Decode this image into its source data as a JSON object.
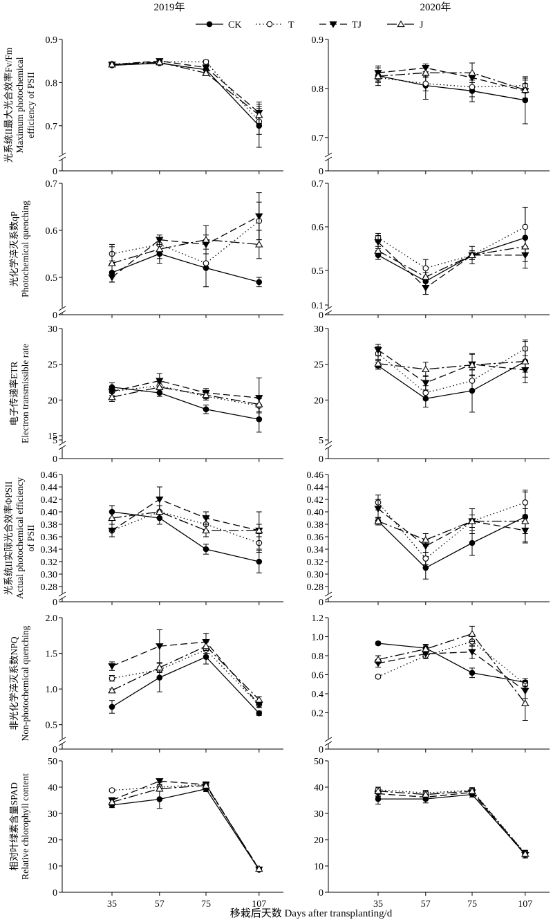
{
  "header": {
    "col_left": "2019年",
    "col_right": "2020年"
  },
  "legend": [
    {
      "key": "CK",
      "label": "CK",
      "dash": "",
      "marker": "filled-circle"
    },
    {
      "key": "T",
      "label": "T",
      "dash": "1.5 3.5",
      "marker": "open-circle"
    },
    {
      "key": "TJ",
      "label": "TJ",
      "dash": "10 5",
      "marker": "filled-triangle-down"
    },
    {
      "key": "J",
      "label": "J",
      "dash": "14 4 3 4",
      "marker": "open-triangle-up"
    }
  ],
  "x_axis": {
    "label": "移栽后天数 Days after transplanting/d",
    "categories": [
      "35",
      "57",
      "75",
      "107"
    ]
  },
  "chart_data": [
    {
      "type": "line",
      "year": "2019年",
      "row": 0,
      "col": 0,
      "ylabel_lines": [
        "光系统II最大光合效率Fv/Fm",
        "Maximum photochemical",
        "efficiency of PSII"
      ],
      "ylim": [
        0.65,
        0.9
      ],
      "yticks": [
        0.7,
        0.8,
        0.9
      ],
      "y_tick_labels": [
        "0.7",
        "0.8",
        "0.9"
      ],
      "zero_label": "0",
      "categories": [
        "35",
        "57",
        "75",
        "107"
      ],
      "series": [
        {
          "name": "CK",
          "values": [
            0.84,
            0.845,
            0.83,
            0.7
          ],
          "errors": [
            0.003,
            0.004,
            0.006,
            0.05
          ]
        },
        {
          "name": "T",
          "values": [
            0.843,
            0.848,
            0.848,
            0.71
          ],
          "errors": [
            0.003,
            0.004,
            0.004,
            0.03
          ]
        },
        {
          "name": "TJ",
          "values": [
            0.842,
            0.85,
            0.835,
            0.73
          ],
          "errors": [
            0.003,
            0.004,
            0.006,
            0.025
          ]
        },
        {
          "name": "J",
          "values": [
            0.842,
            0.847,
            0.822,
            0.725
          ],
          "errors": [
            0.003,
            0.004,
            0.006,
            0.02
          ]
        }
      ]
    },
    {
      "type": "line",
      "year": "2020年",
      "row": 0,
      "col": 1,
      "ylabel_lines": [],
      "ylim": [
        0.68,
        0.9
      ],
      "yticks": [
        0.7,
        0.8,
        0.9
      ],
      "y_tick_labels": [
        "0.7",
        "0.8",
        "0.9"
      ],
      "zero_label": "0",
      "categories": [
        "35",
        "57",
        "75",
        "107"
      ],
      "series": [
        {
          "name": "CK",
          "values": [
            0.826,
            0.806,
            0.795,
            0.776
          ],
          "errors": [
            0.02,
            0.028,
            0.022,
            0.048
          ]
        },
        {
          "name": "T",
          "values": [
            0.822,
            0.81,
            0.803,
            0.806
          ],
          "errors": [
            0.01,
            0.015,
            0.02,
            0.015
          ]
        },
        {
          "name": "TJ",
          "values": [
            0.832,
            0.842,
            0.822,
            0.795
          ],
          "errors": [
            0.01,
            0.008,
            0.01,
            0.015
          ]
        },
        {
          "name": "J",
          "values": [
            0.825,
            0.832,
            0.832,
            0.797
          ],
          "errors": [
            0.01,
            0.01,
            0.02,
            0.02
          ]
        }
      ]
    },
    {
      "type": "line",
      "year": "2019年",
      "row": 1,
      "col": 0,
      "ylabel_lines": [
        "光化学淬灭系数qP",
        "Photochemical quenching"
      ],
      "ylim": [
        0.45,
        0.7
      ],
      "yticks": [
        0.5,
        0.6,
        0.7
      ],
      "y_tick_labels": [
        "0.5",
        "0.6",
        "0.7"
      ],
      "zero_label": "0",
      "categories": [
        "35",
        "57",
        "75",
        "107"
      ],
      "series": [
        {
          "name": "CK",
          "values": [
            0.51,
            0.55,
            0.52,
            0.49
          ],
          "errors": [
            0.02,
            0.02,
            0.04,
            0.01
          ]
        },
        {
          "name": "T",
          "values": [
            0.55,
            0.57,
            0.53,
            0.62
          ],
          "errors": [
            0.015,
            0.015,
            0.05,
            0.04
          ]
        },
        {
          "name": "TJ",
          "values": [
            0.5,
            0.58,
            0.57,
            0.63
          ],
          "errors": [
            0.01,
            0.01,
            0.02,
            0.05
          ]
        },
        {
          "name": "J",
          "values": [
            0.53,
            0.56,
            0.58,
            0.57
          ],
          "errors": [
            0.04,
            0.02,
            0.03,
            0.03
          ]
        }
      ]
    },
    {
      "type": "line",
      "year": "2020年",
      "row": 1,
      "col": 1,
      "ylabel_lines": [],
      "ylim": [
        0.43,
        0.7
      ],
      "yticks": [
        0.5,
        0.6,
        0.7
      ],
      "y_tick_labels": [
        "0.5",
        "0.6",
        "0.7"
      ],
      "zero_label": "0",
      "break_label": "0.1",
      "categories": [
        "35",
        "57",
        "75",
        "107"
      ],
      "series": [
        {
          "name": "CK",
          "values": [
            0.535,
            0.475,
            0.535,
            0.575
          ],
          "errors": [
            0.01,
            0.03,
            0.02,
            0.07
          ]
        },
        {
          "name": "T",
          "values": [
            0.575,
            0.505,
            0.535,
            0.6
          ],
          "errors": [
            0.01,
            0.02,
            0.01,
            0.045
          ]
        },
        {
          "name": "TJ",
          "values": [
            0.565,
            0.46,
            0.535,
            0.535
          ],
          "errors": [
            0.015,
            0.015,
            0.01,
            0.015
          ]
        },
        {
          "name": "J",
          "values": [
            0.545,
            0.485,
            0.535,
            0.555
          ],
          "errors": [
            0.01,
            0.01,
            0.01,
            0.02
          ]
        }
      ]
    },
    {
      "type": "line",
      "year": "2019年",
      "row": 2,
      "col": 0,
      "ylabel_lines": [
        "电子传递率ETR",
        "Electron transmissible rate"
      ],
      "ylim": [
        15,
        30
      ],
      "yticks": [
        15,
        20,
        25,
        30
      ],
      "y_tick_labels": [
        "15",
        "20",
        "25",
        "30"
      ],
      "zero_label": "0",
      "break_label": "5",
      "categories": [
        "35",
        "57",
        "75",
        "107"
      ],
      "series": [
        {
          "name": "CK",
          "values": [
            21.8,
            21.0,
            18.7,
            17.3
          ],
          "errors": [
            0.6,
            0.5,
            0.6,
            1.8
          ]
        },
        {
          "name": "T",
          "values": [
            21.2,
            22.0,
            20.5,
            19.2
          ],
          "errors": [
            0.6,
            0.6,
            0.5,
            1.0
          ]
        },
        {
          "name": "TJ",
          "values": [
            21.2,
            22.7,
            21.0,
            20.3
          ],
          "errors": [
            0.6,
            1.0,
            0.6,
            2.8
          ]
        },
        {
          "name": "J",
          "values": [
            20.4,
            21.8,
            20.7,
            19.4
          ],
          "errors": [
            0.6,
            0.6,
            0.5,
            1.0
          ]
        }
      ]
    },
    {
      "type": "line",
      "year": "2020年",
      "row": 2,
      "col": 1,
      "ylabel_lines": [],
      "ylim": [
        15,
        30
      ],
      "yticks": [
        20,
        25,
        30
      ],
      "y_tick_labels": [
        "20",
        "25",
        "30"
      ],
      "zero_label": "0",
      "break_label": "5",
      "categories": [
        "35",
        "57",
        "75",
        "107"
      ],
      "series": [
        {
          "name": "CK",
          "values": [
            24.8,
            20.2,
            21.3,
            25.4
          ],
          "errors": [
            0.5,
            1.2,
            3.0,
            1.5
          ]
        },
        {
          "name": "T",
          "values": [
            26.5,
            21.0,
            22.7,
            27.2
          ],
          "errors": [
            1.0,
            1.0,
            1.5,
            1.0
          ]
        },
        {
          "name": "TJ",
          "values": [
            27.0,
            22.4,
            25.0,
            24.2
          ],
          "errors": [
            0.8,
            1.0,
            1.5,
            1.0
          ]
        },
        {
          "name": "J",
          "values": [
            25.1,
            24.3,
            24.9,
            25.4
          ],
          "errors": [
            0.6,
            1.0,
            1.5,
            3.0
          ]
        }
      ]
    },
    {
      "type": "line",
      "year": "2019年",
      "row": 3,
      "col": 0,
      "ylabel_lines": [
        "光系统II实际光合效率ΦPSII",
        "Actual photochemical efficiency",
        "of PSII"
      ],
      "ylim": [
        0.28,
        0.46
      ],
      "yticks": [
        0.28,
        0.3,
        0.32,
        0.34,
        0.36,
        0.38,
        0.4,
        0.42,
        0.44,
        0.46
      ],
      "y_tick_labels": [
        "0.28",
        "0.30",
        "0.32",
        "0.34",
        "0.36",
        "0.38",
        "0.40",
        "0.42",
        "0.44",
        "0.46"
      ],
      "zero_label": "0",
      "categories": [
        "35",
        "57",
        "75",
        "107"
      ],
      "series": [
        {
          "name": "CK",
          "values": [
            0.4,
            0.39,
            0.34,
            0.32
          ],
          "errors": [
            0.01,
            0.01,
            0.008,
            0.018
          ]
        },
        {
          "name": "T",
          "values": [
            0.37,
            0.4,
            0.38,
            0.35
          ],
          "errors": [
            0.01,
            0.01,
            0.01,
            0.015
          ]
        },
        {
          "name": "TJ",
          "values": [
            0.37,
            0.42,
            0.39,
            0.37
          ],
          "errors": [
            0.01,
            0.02,
            0.01,
            0.03
          ]
        },
        {
          "name": "J",
          "values": [
            0.39,
            0.4,
            0.37,
            0.37
          ],
          "errors": [
            0.01,
            0.01,
            0.01,
            0.01
          ]
        }
      ]
    },
    {
      "type": "line",
      "year": "2020年",
      "row": 3,
      "col": 1,
      "ylabel_lines": [],
      "ylim": [
        0.28,
        0.46
      ],
      "yticks": [
        0.28,
        0.3,
        0.32,
        0.34,
        0.36,
        0.38,
        0.4,
        0.42,
        0.44,
        0.46
      ],
      "y_tick_labels": [
        "0.28",
        "0.30",
        "0.32",
        "0.34",
        "0.36",
        "0.38",
        "0.40",
        "0.42",
        "0.44",
        "0.46"
      ],
      "zero_label": "0",
      "categories": [
        "35",
        "57",
        "75",
        "107"
      ],
      "series": [
        {
          "name": "CK",
          "values": [
            0.385,
            0.31,
            0.35,
            0.392
          ],
          "errors": [
            0.006,
            0.018,
            0.02,
            0.04
          ]
        },
        {
          "name": "T",
          "values": [
            0.415,
            0.325,
            0.385,
            0.415
          ],
          "errors": [
            0.012,
            0.01,
            0.02,
            0.02
          ]
        },
        {
          "name": "TJ",
          "values": [
            0.405,
            0.345,
            0.385,
            0.37
          ],
          "errors": [
            0.015,
            0.01,
            0.02,
            0.02
          ]
        },
        {
          "name": "J",
          "values": [
            0.385,
            0.355,
            0.385,
            0.385
          ],
          "errors": [
            0.006,
            0.01,
            0.01,
            0.02
          ]
        }
      ]
    },
    {
      "type": "line",
      "year": "2019年",
      "row": 4,
      "col": 0,
      "ylabel_lines": [
        "非光化学淬灭系数NPQ",
        "Non-photochemical quenching"
      ],
      "ylim": [
        0.4,
        2.0
      ],
      "yticks": [
        0.5,
        1.0,
        1.5,
        2.0
      ],
      "y_tick_labels": [
        "0.5",
        "1.0",
        "1.5",
        "2.0"
      ],
      "zero_label": "0",
      "categories": [
        "35",
        "57",
        "75",
        "107"
      ],
      "series": [
        {
          "name": "CK",
          "values": [
            0.75,
            1.16,
            1.45,
            0.66
          ],
          "errors": [
            0.09,
            0.2,
            0.1,
            0.03
          ]
        },
        {
          "name": "T",
          "values": [
            1.15,
            1.27,
            1.55,
            0.78
          ],
          "errors": [
            0.04,
            0.04,
            0.05,
            0.04
          ]
        },
        {
          "name": "TJ",
          "values": [
            1.32,
            1.6,
            1.66,
            0.78
          ],
          "errors": [
            0.06,
            0.23,
            0.12,
            0.04
          ]
        },
        {
          "name": "J",
          "values": [
            0.98,
            1.3,
            1.6,
            0.85
          ],
          "errors": [
            0.02,
            0.06,
            0.06,
            0.04
          ]
        }
      ]
    },
    {
      "type": "line",
      "year": "2020年",
      "row": 4,
      "col": 1,
      "ylabel_lines": [],
      "ylim": [
        0,
        1.2
      ],
      "yticks": [
        0.2,
        0.4,
        0.6,
        0.8,
        1.0,
        1.2
      ],
      "y_tick_labels": [
        "0.2",
        "0.4",
        "0.6",
        "0.8",
        "1.0",
        "1.2"
      ],
      "zero_label": "0",
      "categories": [
        "35",
        "57",
        "75",
        "107"
      ],
      "series": [
        {
          "name": "CK",
          "values": [
            0.93,
            0.88,
            0.62,
            0.52
          ],
          "errors": [
            0.015,
            0.03,
            0.05,
            0.04
          ]
        },
        {
          "name": "T",
          "values": [
            0.58,
            0.8,
            0.95,
            0.5
          ],
          "errors": [
            0.015,
            0.03,
            0.05,
            0.04
          ]
        },
        {
          "name": "TJ",
          "values": [
            0.72,
            0.82,
            0.84,
            0.43
          ],
          "errors": [
            0.04,
            0.05,
            0.07,
            0.08
          ]
        },
        {
          "name": "J",
          "values": [
            0.76,
            0.87,
            1.03,
            0.3
          ],
          "errors": [
            0.04,
            0.05,
            0.08,
            0.18
          ]
        }
      ]
    },
    {
      "type": "line",
      "year": "2019年",
      "row": 5,
      "col": 0,
      "ylabel_lines": [
        "相对叶绿素含量SPAD",
        "Relative chlorophyll content"
      ],
      "ylim": [
        0,
        50
      ],
      "yticks": [
        0,
        10,
        20,
        30,
        40,
        50
      ],
      "y_tick_labels": [
        "0",
        "10",
        "20",
        "30",
        "40",
        "50"
      ],
      "categories": [
        "35",
        "57",
        "75",
        "107"
      ],
      "series": [
        {
          "name": "CK",
          "values": [
            33.2,
            35.4,
            39.3,
            8.6
          ],
          "errors": [
            1.0,
            3.5,
            1.0,
            0.6
          ]
        },
        {
          "name": "T",
          "values": [
            38.8,
            40.0,
            41.0,
            8.6
          ],
          "errors": [
            0.5,
            1.0,
            1.0,
            0.5
          ]
        },
        {
          "name": "TJ",
          "values": [
            35.0,
            42.3,
            41.0,
            8.7
          ],
          "errors": [
            1.0,
            0.5,
            1.0,
            0.5
          ]
        },
        {
          "name": "J",
          "values": [
            34.3,
            39.4,
            40.6,
            8.9
          ],
          "errors": [
            1.0,
            1.0,
            1.0,
            0.5
          ]
        }
      ]
    },
    {
      "type": "line",
      "year": "2020年",
      "row": 5,
      "col": 1,
      "ylabel_lines": [],
      "ylim": [
        0,
        50
      ],
      "yticks": [
        0,
        10,
        20,
        30,
        40,
        50
      ],
      "y_tick_labels": [
        "0",
        "10",
        "20",
        "30",
        "40",
        "50"
      ],
      "categories": [
        "35",
        "57",
        "75",
        "107"
      ],
      "series": [
        {
          "name": "CK",
          "values": [
            35.5,
            35.5,
            37.2,
            14.5
          ],
          "errors": [
            2.0,
            1.5,
            1.0,
            1.5
          ]
        },
        {
          "name": "T",
          "values": [
            39.0,
            37.8,
            38.8,
            14.8
          ],
          "errors": [
            1.0,
            1.0,
            1.0,
            1.0
          ]
        },
        {
          "name": "TJ",
          "values": [
            37.5,
            36.2,
            38.0,
            14.2
          ],
          "errors": [
            1.0,
            1.0,
            1.0,
            1.0
          ]
        },
        {
          "name": "J",
          "values": [
            38.5,
            37.2,
            38.5,
            14.6
          ],
          "errors": [
            1.5,
            1.0,
            1.0,
            1.0
          ]
        }
      ]
    }
  ]
}
